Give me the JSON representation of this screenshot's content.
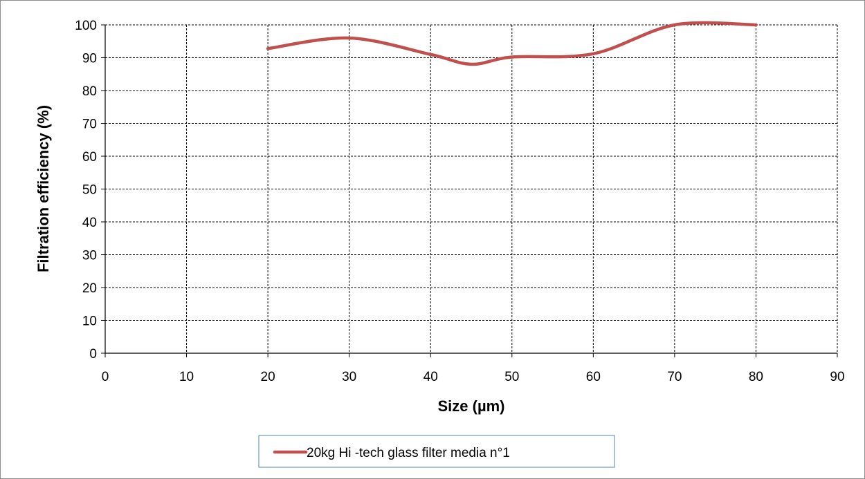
{
  "chart_data": {
    "type": "line",
    "title": "",
    "xlabel": "Size (µm)",
    "ylabel": "Filtration efficiency (%)",
    "xlim": [
      0,
      90
    ],
    "ylim": [
      0,
      100
    ],
    "xticks": [
      "0",
      "10",
      "20",
      "30",
      "40",
      "50",
      "60",
      "70",
      "80",
      "90"
    ],
    "yticks": [
      "0",
      "10",
      "20",
      "30",
      "40",
      "50",
      "60",
      "70",
      "80",
      "90",
      "100"
    ],
    "grid": true,
    "grid_style": "dashed",
    "legend_position": "bottom",
    "series": [
      {
        "name": "20kg Hi -tech glass filter media n°1",
        "color": "#c0504d",
        "smooth": true,
        "x": [
          20,
          30,
          40,
          45,
          50,
          60,
          70,
          80
        ],
        "y": [
          92.8,
          96,
          91,
          88,
          90.2,
          91.2,
          100,
          100
        ]
      }
    ]
  }
}
